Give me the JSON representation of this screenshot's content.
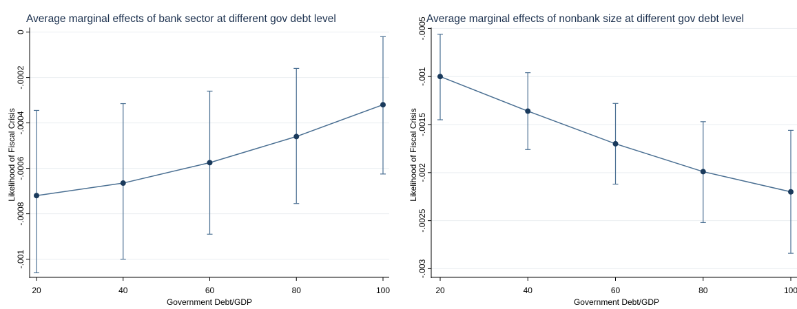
{
  "chart_data": [
    {
      "type": "line",
      "title": "Average marginal effects of bank sector at different gov debt level",
      "xlabel": "Government Debt/GDP",
      "ylabel": "Likelihood of Fiscal Crisis",
      "x": [
        20,
        40,
        60,
        80,
        100
      ],
      "x_ticks": [
        "20",
        "40",
        "60",
        "80",
        "100"
      ],
      "y_ticks": [
        {
          "v": 0,
          "label": "0"
        },
        {
          "v": -0.0002,
          "label": "-.0002"
        },
        {
          "v": -0.0004,
          "label": "-.0004"
        },
        {
          "v": -0.0006,
          "label": "-.0006"
        },
        {
          "v": -0.0008,
          "label": "-.0008"
        },
        {
          "v": -0.001,
          "label": "-.001"
        }
      ],
      "ylim": [
        -0.00108,
        2e-05
      ],
      "series": [
        {
          "values": [
            -0.00072,
            -0.000665,
            -0.000575,
            -0.00046,
            -0.00032
          ],
          "ci_lower": [
            -0.00106,
            -0.001,
            -0.00089,
            -0.000755,
            -0.000625
          ],
          "ci_upper": [
            -0.000345,
            -0.000315,
            -0.00026,
            -0.00016,
            -2e-05
          ]
        }
      ],
      "line_color": "#4a6f92",
      "marker_color": "#1a3a5c",
      "grid": true
    },
    {
      "type": "line",
      "title": "Average marginal effects of nonbank size at different gov debt level",
      "xlabel": "Government Debt/GDP",
      "ylabel": "Likelihood of Fiscal Crisis",
      "x": [
        20,
        40,
        60,
        80,
        100
      ],
      "x_ticks": [
        "20",
        "40",
        "60",
        "80",
        "100"
      ],
      "y_ticks": [
        {
          "v": -0.0005,
          "label": "-.0005"
        },
        {
          "v": -0.001,
          "label": "-.001"
        },
        {
          "v": -0.0015,
          "label": "-.0015"
        },
        {
          "v": -0.002,
          "label": "-.002"
        },
        {
          "v": -0.0025,
          "label": "-.0025"
        },
        {
          "v": -0.003,
          "label": "-.003"
        }
      ],
      "ylim": [
        -0.00309,
        -0.00049
      ],
      "series": [
        {
          "values": [
            -0.001,
            -0.00136,
            -0.0017,
            -0.00199,
            -0.0022
          ],
          "ci_lower": [
            -0.00145,
            -0.00176,
            -0.00212,
            -0.00252,
            -0.00284
          ],
          "ci_upper": [
            -0.00056,
            -0.00096,
            -0.00128,
            -0.00147,
            -0.00156
          ]
        }
      ],
      "line_color": "#4a6f92",
      "marker_color": "#1a3a5c",
      "grid": true
    }
  ]
}
